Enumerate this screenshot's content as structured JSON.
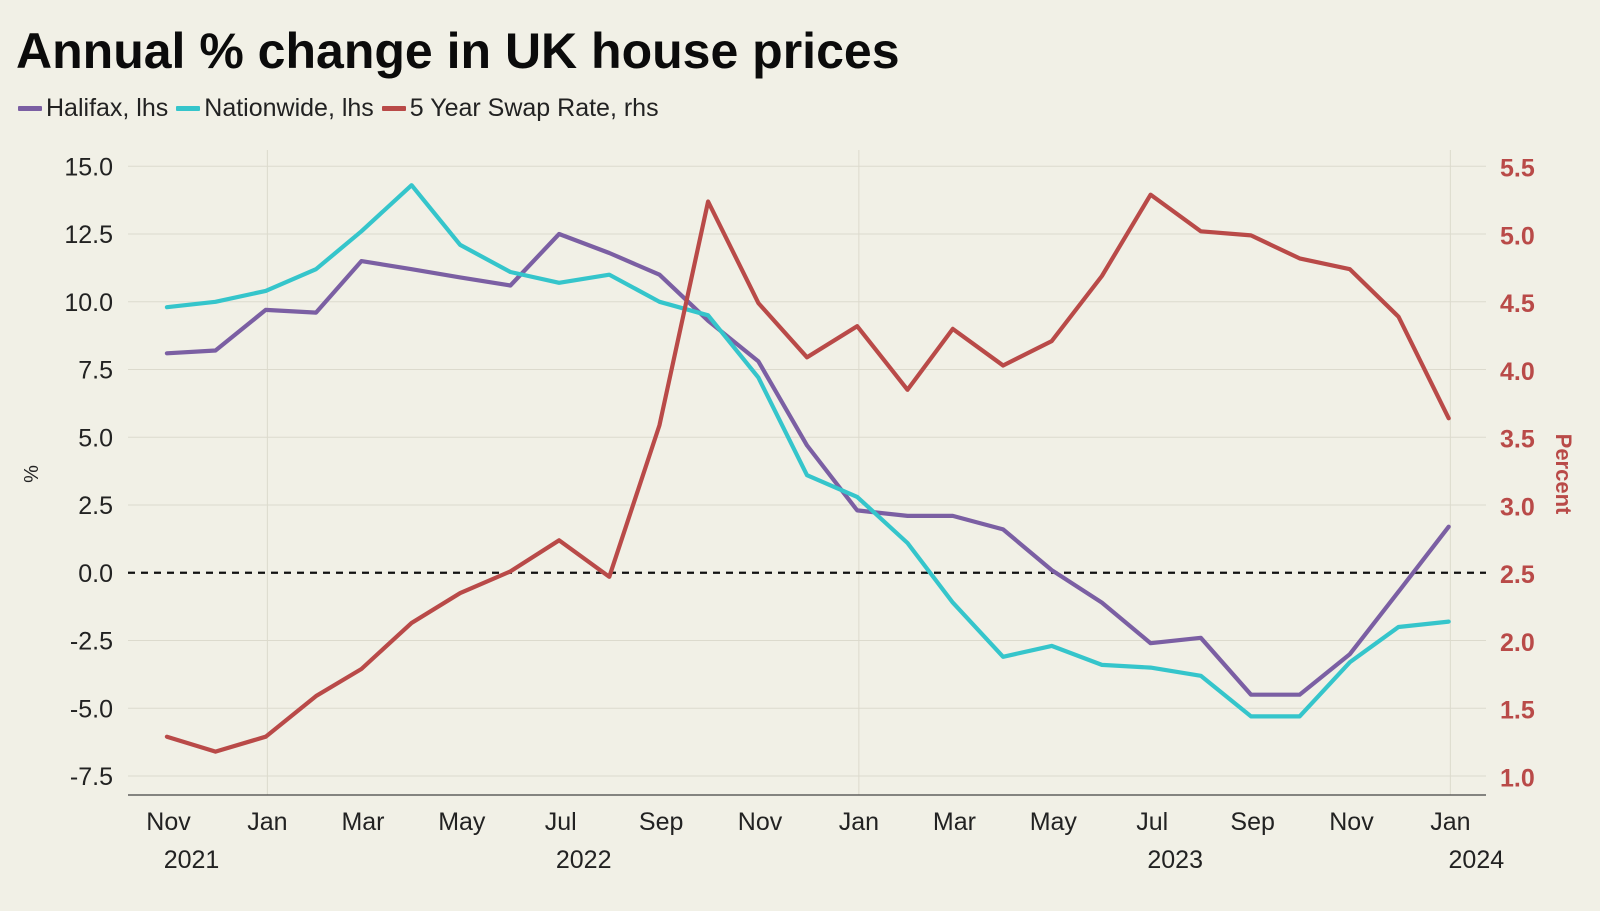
{
  "chart_data": {
    "type": "line",
    "title": "Annual % change in UK house prices",
    "legend_position": "top-left",
    "grid": true,
    "x_tick_labels": [
      {
        "month": "Nov",
        "year": "2021",
        "date": "2021-11-01"
      },
      {
        "month": "Jan",
        "year": "",
        "date": "2022-01-01"
      },
      {
        "month": "Mar",
        "year": "",
        "date": "2022-03-01"
      },
      {
        "month": "May",
        "year": "",
        "date": "2022-05-01"
      },
      {
        "month": "Jul",
        "year": "2022",
        "date": "2022-07-01"
      },
      {
        "month": "Sep",
        "year": "",
        "date": "2022-09-01"
      },
      {
        "month": "Nov",
        "year": "",
        "date": "2022-11-01"
      },
      {
        "month": "Jan",
        "year": "",
        "date": "2023-01-01"
      },
      {
        "month": "Mar",
        "year": "",
        "date": "2023-03-01"
      },
      {
        "month": "May",
        "year": "",
        "date": "2023-05-01"
      },
      {
        "month": "Jul",
        "year": "2023",
        "date": "2023-07-01"
      },
      {
        "month": "Sep",
        "year": "",
        "date": "2023-09-01"
      },
      {
        "month": "Nov",
        "year": "",
        "date": "2023-11-01"
      },
      {
        "month": "Jan",
        "year": "2024",
        "date": "2024-01-01"
      }
    ],
    "x_range": [
      "2021-10-07",
      "2024-01-23"
    ],
    "y_left": {
      "label": "%",
      "range": [
        -8.2,
        15.6
      ],
      "ticks": [
        15.0,
        12.5,
        10.0,
        7.5,
        5.0,
        2.5,
        0.0,
        -2.5,
        -5.0,
        -7.5
      ],
      "tick_labels": [
        "15.0",
        "12.5",
        "10.0",
        "7.5",
        "5.0",
        "2.5",
        "0.0",
        "-2.5",
        "-5.0",
        "-7.5"
      ],
      "zero_line": "dashed"
    },
    "y_right": {
      "label": "Percent",
      "range": [
        0.87,
        5.63
      ],
      "ticks": [
        5.5,
        5.0,
        4.5,
        4.0,
        3.5,
        3.0,
        2.5,
        2.0,
        1.5,
        1.0
      ],
      "tick_labels": [
        "5.5",
        "5.0",
        "4.5",
        "4.0",
        "3.5",
        "3.0",
        "2.5",
        "2.0",
        "1.5",
        "1.0"
      ],
      "color": "#b94a48"
    },
    "x": [
      "2021-10-31",
      "2021-11-30",
      "2021-12-31",
      "2022-01-31",
      "2022-02-28",
      "2022-03-31",
      "2022-04-30",
      "2022-05-31",
      "2022-06-30",
      "2022-07-31",
      "2022-08-31",
      "2022-09-30",
      "2022-10-31",
      "2022-11-30",
      "2022-12-31",
      "2023-01-31",
      "2023-02-28",
      "2023-03-31",
      "2023-04-30",
      "2023-05-31",
      "2023-06-30",
      "2023-07-31",
      "2023-08-31",
      "2023-09-30",
      "2023-10-31",
      "2023-11-30",
      "2023-12-31"
    ],
    "series": [
      {
        "name": "Halifax, lhs",
        "axis": "left",
        "color": "#7b5fa3",
        "values": [
          8.1,
          8.2,
          9.7,
          9.6,
          11.5,
          11.2,
          10.9,
          10.6,
          12.5,
          11.8,
          11.0,
          9.3,
          7.8,
          4.7,
          2.3,
          2.1,
          2.1,
          1.6,
          0.1,
          -1.1,
          -2.6,
          -2.4,
          -4.5,
          -4.5,
          -3.0,
          -0.7,
          1.7
        ]
      },
      {
        "name": "Nationwide, lhs",
        "axis": "left",
        "color": "#35c5cb",
        "values": [
          9.8,
          10.0,
          10.4,
          11.2,
          12.6,
          14.3,
          12.1,
          11.1,
          10.7,
          11.0,
          10.0,
          9.5,
          7.2,
          3.6,
          2.8,
          1.1,
          -1.1,
          -3.1,
          -2.7,
          -3.4,
          -3.5,
          -3.8,
          -5.3,
          -5.3,
          -3.3,
          -2.0,
          -1.8
        ]
      },
      {
        "name": "5 Year Swap Rate, rhs",
        "axis": "right",
        "color": "#b94a48",
        "values": [
          1.3,
          1.19,
          1.3,
          1.6,
          1.8,
          2.14,
          2.36,
          2.52,
          2.75,
          2.48,
          3.6,
          5.25,
          4.5,
          4.1,
          4.33,
          3.86,
          4.31,
          4.04,
          4.22,
          4.7,
          5.3,
          5.03,
          5.0,
          4.83,
          4.75,
          4.4,
          3.65
        ]
      }
    ]
  }
}
